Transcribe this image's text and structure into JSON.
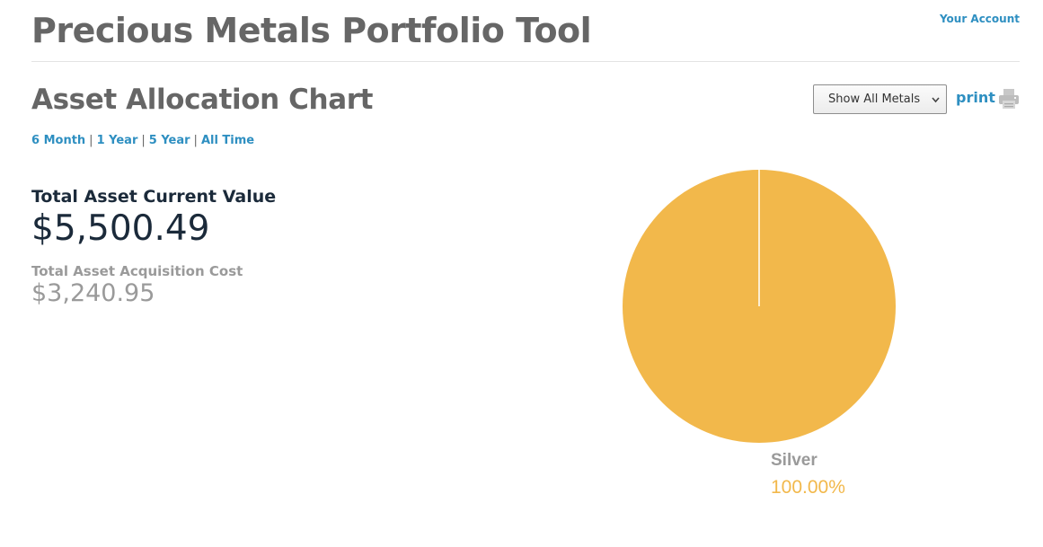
{
  "header": {
    "app_title": "Precious Metals Portfolio Tool",
    "account_link": "Your Account"
  },
  "section": {
    "title": "Asset Allocation Chart"
  },
  "filter": {
    "selected": "Show All Metals"
  },
  "print": {
    "label": "print",
    "icon": "printer-icon"
  },
  "time_ranges": [
    "6 Month",
    "1 Year",
    "5 Year",
    "All Time"
  ],
  "summary": {
    "current_value_label": "Total Asset Current Value",
    "current_value": "$5,500.49",
    "acquisition_cost_label": "Total Asset Acquisition Cost",
    "acquisition_cost": "$3,240.95"
  },
  "colors": {
    "link": "#2e8fc1",
    "silver": "#f2b84b"
  },
  "chart_data": {
    "type": "pie",
    "slices": [
      {
        "name": "Silver",
        "value": 100.0,
        "label": "100.00%",
        "color": "#f2b84b"
      }
    ],
    "legend": "none"
  }
}
